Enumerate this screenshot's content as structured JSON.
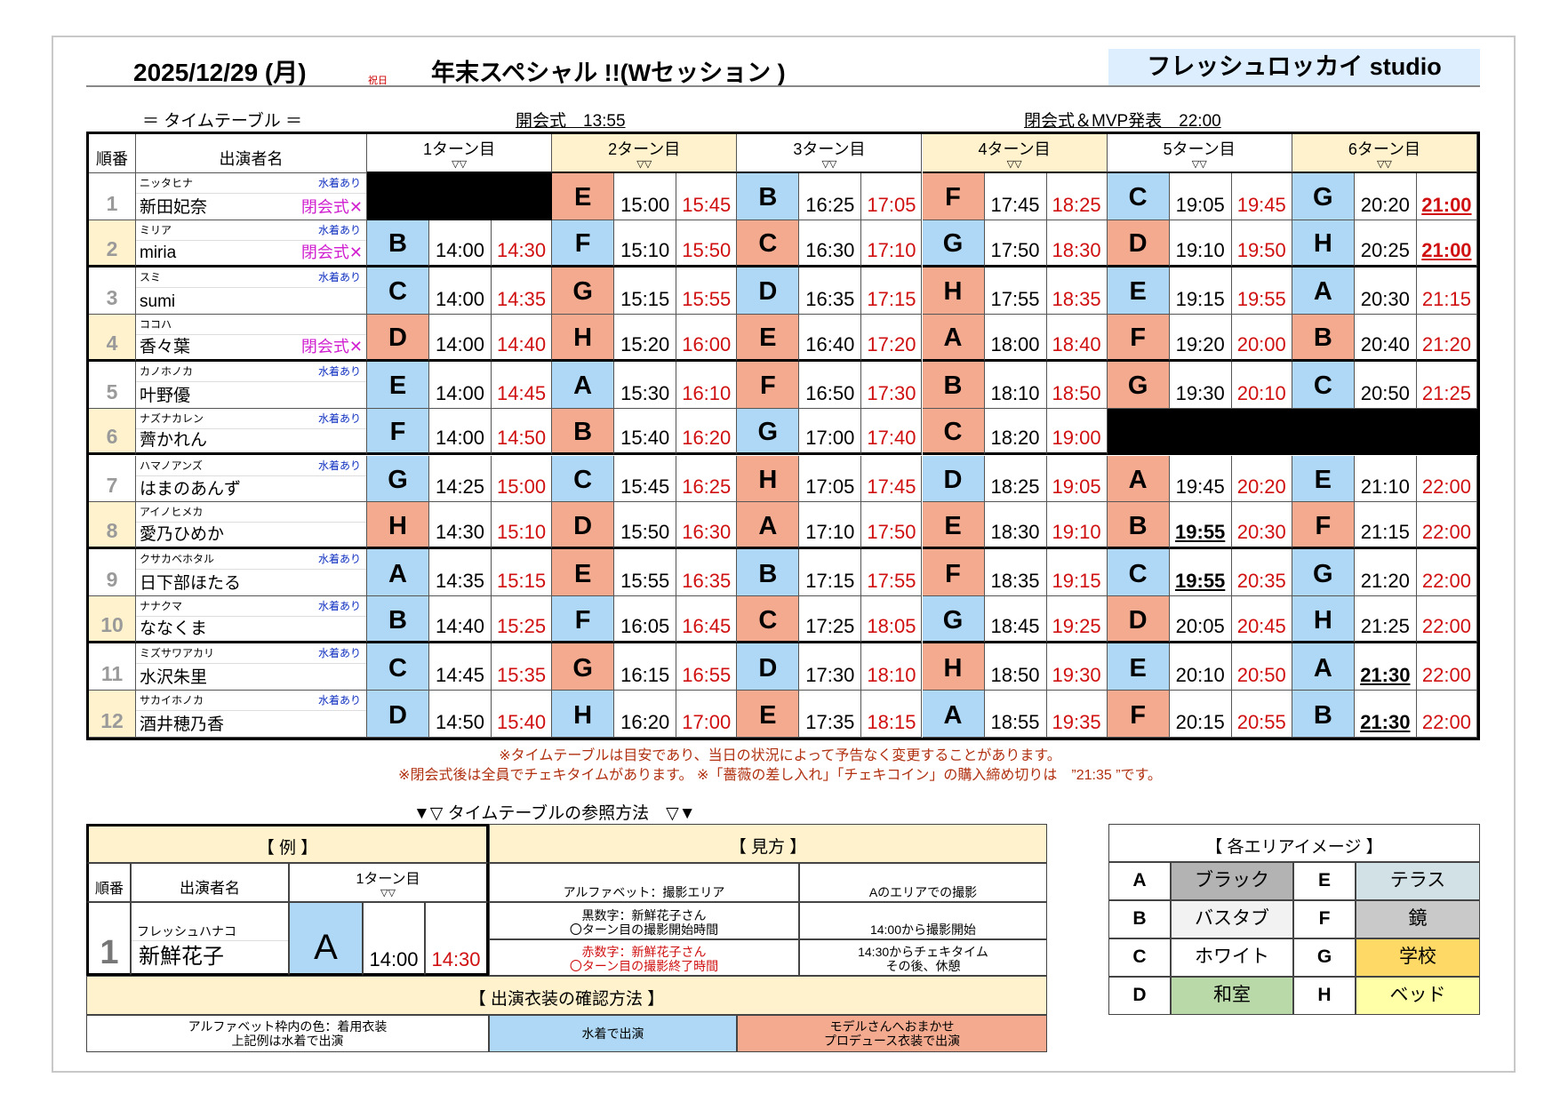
{
  "header": {
    "date": "2025/12/29 (月)",
    "holiday": "祝日",
    "title": "年末スペシャル !!(Wセッション )",
    "studio": "フレッシュロッカイ studio",
    "timetable_label": "＝ タイムテーブル ＝",
    "opening": "開会式　13:55",
    "closing": "閉会式＆MVP発表　22:00"
  },
  "colors": {
    "swimsuit": "#aed8f5",
    "producer": "#f4aa8f",
    "cream": "#fff2cc",
    "end_time": "#d01010",
    "closing_mark": "#d020d0"
  },
  "table": {
    "col_no": "順番",
    "col_name": "出演者名",
    "turns": [
      {
        "label": "1ターン目",
        "sub": "▽▽"
      },
      {
        "label": "2ターン目",
        "sub": "▽▽"
      },
      {
        "label": "3ターン目",
        "sub": "▽▽"
      },
      {
        "label": "4ターン目",
        "sub": "▽▽"
      },
      {
        "label": "5ターン目",
        "sub": "▽▽"
      },
      {
        "label": "6ターン目",
        "sub": "▽▽"
      }
    ],
    "rows": [
      {
        "no": "1",
        "kana": "ニッタヒナ",
        "name": "新田妃奈",
        "swimsuit": "水着あり",
        "closing": "閉会式✕",
        "slots": [
          null,
          {
            "area": "E",
            "color": "salmon",
            "start": "15:00",
            "end": "15:45"
          },
          {
            "area": "B",
            "color": "blue",
            "start": "16:25",
            "end": "17:05"
          },
          {
            "area": "F",
            "color": "salmon",
            "start": "17:45",
            "end": "18:25"
          },
          {
            "area": "C",
            "color": "blue",
            "start": "19:05",
            "end": "19:45"
          },
          {
            "area": "G",
            "color": "blue",
            "start": "20:20",
            "end": "21:00",
            "emphasize": "end"
          }
        ]
      },
      {
        "no": "2",
        "kana": "ミリア",
        "name": "miria",
        "swimsuit": "水着あり",
        "closing": "閉会式✕",
        "slots": [
          {
            "area": "B",
            "color": "blue",
            "start": "14:00",
            "end": "14:30"
          },
          {
            "area": "F",
            "color": "blue",
            "start": "15:10",
            "end": "15:50"
          },
          {
            "area": "C",
            "color": "salmon",
            "start": "16:30",
            "end": "17:10"
          },
          {
            "area": "G",
            "color": "blue",
            "start": "17:50",
            "end": "18:30"
          },
          {
            "area": "D",
            "color": "salmon",
            "start": "19:10",
            "end": "19:50"
          },
          {
            "area": "H",
            "color": "blue",
            "start": "20:25",
            "end": "21:00",
            "emphasize": "end"
          }
        ]
      },
      {
        "no": "3",
        "kana": "スミ",
        "name": "sumi",
        "swimsuit": "水着あり",
        "closing": "",
        "slots": [
          {
            "area": "C",
            "color": "blue",
            "start": "14:00",
            "end": "14:35"
          },
          {
            "area": "G",
            "color": "salmon",
            "start": "15:15",
            "end": "15:55"
          },
          {
            "area": "D",
            "color": "blue",
            "start": "16:35",
            "end": "17:15"
          },
          {
            "area": "H",
            "color": "salmon",
            "start": "17:55",
            "end": "18:35"
          },
          {
            "area": "E",
            "color": "blue",
            "start": "19:15",
            "end": "19:55"
          },
          {
            "area": "A",
            "color": "blue",
            "start": "20:30",
            "end": "21:15"
          }
        ]
      },
      {
        "no": "4",
        "kana": "ココハ",
        "name": "香々葉",
        "swimsuit": "",
        "closing": "閉会式✕",
        "slots": [
          {
            "area": "D",
            "color": "salmon",
            "start": "14:00",
            "end": "14:40"
          },
          {
            "area": "H",
            "color": "salmon",
            "start": "15:20",
            "end": "16:00"
          },
          {
            "area": "E",
            "color": "salmon",
            "start": "16:40",
            "end": "17:20"
          },
          {
            "area": "A",
            "color": "salmon",
            "start": "18:00",
            "end": "18:40"
          },
          {
            "area": "F",
            "color": "salmon",
            "start": "19:20",
            "end": "20:00"
          },
          {
            "area": "B",
            "color": "salmon",
            "start": "20:40",
            "end": "21:20"
          }
        ]
      },
      {
        "no": "5",
        "kana": "カノホノカ",
        "name": "叶野優",
        "swimsuit": "水着あり",
        "closing": "",
        "slots": [
          {
            "area": "E",
            "color": "blue",
            "start": "14:00",
            "end": "14:45"
          },
          {
            "area": "A",
            "color": "blue",
            "start": "15:30",
            "end": "16:10"
          },
          {
            "area": "F",
            "color": "salmon",
            "start": "16:50",
            "end": "17:30"
          },
          {
            "area": "B",
            "color": "salmon",
            "start": "18:10",
            "end": "18:50"
          },
          {
            "area": "G",
            "color": "salmon",
            "start": "19:30",
            "end": "20:10"
          },
          {
            "area": "C",
            "color": "blue",
            "start": "20:50",
            "end": "21:25"
          }
        ]
      },
      {
        "no": "6",
        "kana": "ナズナカレン",
        "name": "薺かれん",
        "swimsuit": "水着あり",
        "closing": "",
        "slots": [
          {
            "area": "F",
            "color": "blue",
            "start": "14:00",
            "end": "14:50"
          },
          {
            "area": "B",
            "color": "salmon",
            "start": "15:40",
            "end": "16:20"
          },
          {
            "area": "G",
            "color": "blue",
            "start": "17:00",
            "end": "17:40"
          },
          {
            "area": "C",
            "color": "salmon",
            "start": "18:20",
            "end": "19:00"
          },
          null,
          null
        ]
      },
      {
        "no": "7",
        "kana": "ハマノアンズ",
        "name": "はまのあんず",
        "swimsuit": "水着あり",
        "closing": "",
        "slots": [
          {
            "area": "G",
            "color": "blue",
            "start": "14:25",
            "end": "15:00"
          },
          {
            "area": "C",
            "color": "blue",
            "start": "15:45",
            "end": "16:25"
          },
          {
            "area": "H",
            "color": "salmon",
            "start": "17:05",
            "end": "17:45"
          },
          {
            "area": "D",
            "color": "blue",
            "start": "18:25",
            "end": "19:05"
          },
          {
            "area": "A",
            "color": "salmon",
            "start": "19:45",
            "end": "20:20"
          },
          {
            "area": "E",
            "color": "blue",
            "start": "21:10",
            "end": "22:00"
          }
        ]
      },
      {
        "no": "8",
        "kana": "アイノヒメカ",
        "name": "愛乃ひめか",
        "swimsuit": "",
        "closing": "",
        "slots": [
          {
            "area": "H",
            "color": "salmon",
            "start": "14:30",
            "end": "15:10"
          },
          {
            "area": "D",
            "color": "salmon",
            "start": "15:50",
            "end": "16:30"
          },
          {
            "area": "A",
            "color": "salmon",
            "start": "17:10",
            "end": "17:50"
          },
          {
            "area": "E",
            "color": "salmon",
            "start": "18:30",
            "end": "19:10"
          },
          {
            "area": "B",
            "color": "salmon",
            "start": "19:55",
            "end": "20:30",
            "emphasize": "start"
          },
          {
            "area": "F",
            "color": "salmon",
            "start": "21:15",
            "end": "22:00"
          }
        ]
      },
      {
        "no": "9",
        "kana": "クサカベホタル",
        "name": "日下部ほたる",
        "swimsuit": "水着あり",
        "closing": "",
        "slots": [
          {
            "area": "A",
            "color": "blue",
            "start": "14:35",
            "end": "15:15"
          },
          {
            "area": "E",
            "color": "salmon",
            "start": "15:55",
            "end": "16:35"
          },
          {
            "area": "B",
            "color": "blue",
            "start": "17:15",
            "end": "17:55"
          },
          {
            "area": "F",
            "color": "salmon",
            "start": "18:35",
            "end": "19:15"
          },
          {
            "area": "C",
            "color": "blue",
            "start": "19:55",
            "end": "20:35",
            "emphasize": "start"
          },
          {
            "area": "G",
            "color": "blue",
            "start": "21:20",
            "end": "22:00"
          }
        ]
      },
      {
        "no": "10",
        "kana": "ナナクマ",
        "name": "ななくま",
        "swimsuit": "水着あり",
        "closing": "",
        "slots": [
          {
            "area": "B",
            "color": "blue",
            "start": "14:40",
            "end": "15:25"
          },
          {
            "area": "F",
            "color": "blue",
            "start": "16:05",
            "end": "16:45"
          },
          {
            "area": "C",
            "color": "salmon",
            "start": "17:25",
            "end": "18:05"
          },
          {
            "area": "G",
            "color": "blue",
            "start": "18:45",
            "end": "19:25"
          },
          {
            "area": "D",
            "color": "salmon",
            "start": "20:05",
            "end": "20:45"
          },
          {
            "area": "H",
            "color": "blue",
            "start": "21:25",
            "end": "22:00"
          }
        ]
      },
      {
        "no": "11",
        "kana": "ミズサワアカリ",
        "name": "水沢朱里",
        "swimsuit": "水着あり",
        "closing": "",
        "slots": [
          {
            "area": "C",
            "color": "blue",
            "start": "14:45",
            "end": "15:35"
          },
          {
            "area": "G",
            "color": "salmon",
            "start": "16:15",
            "end": "16:55"
          },
          {
            "area": "D",
            "color": "blue",
            "start": "17:30",
            "end": "18:10"
          },
          {
            "area": "H",
            "color": "salmon",
            "start": "18:50",
            "end": "19:30"
          },
          {
            "area": "E",
            "color": "blue",
            "start": "20:10",
            "end": "20:50"
          },
          {
            "area": "A",
            "color": "blue",
            "start": "21:30",
            "end": "22:00",
            "emphasize": "start"
          }
        ]
      },
      {
        "no": "12",
        "kana": "サカイホノカ",
        "name": "酒井穂乃香",
        "swimsuit": "水着あり",
        "closing": "",
        "slots": [
          {
            "area": "D",
            "color": "blue",
            "start": "14:50",
            "end": "15:40"
          },
          {
            "area": "H",
            "color": "blue",
            "start": "16:20",
            "end": "17:00"
          },
          {
            "area": "E",
            "color": "salmon",
            "start": "17:35",
            "end": "18:15"
          },
          {
            "area": "A",
            "color": "blue",
            "start": "18:55",
            "end": "19:35"
          },
          {
            "area": "F",
            "color": "salmon",
            "start": "20:15",
            "end": "20:55"
          },
          {
            "area": "B",
            "color": "blue",
            "start": "21:30",
            "end": "22:00",
            "emphasize": "start"
          }
        ]
      }
    ]
  },
  "notes": [
    "※タイムテーブルは目安であり、当日の状況によって予告なく変更することがあります。",
    "※閉会式後は全員でチェキタイムがあります。 ※「薔薇の差し入れ」「チェキコイン」の購入締め切りは　”21:35 ”です。"
  ],
  "reference": {
    "title": "▼▽ タイムテーブルの参照方法　▽▼",
    "example": {
      "heading": "【 例 】",
      "col_no": "順番",
      "col_name": "出演者名",
      "turn": "1ターン目",
      "turn_sub": "▽▽",
      "no": "1",
      "kana": "フレッシュハナコ",
      "name": "新鮮花子",
      "area": "A",
      "start": "14:00",
      "end": "14:30"
    },
    "how_to": {
      "heading": "【 見方 】",
      "rows": [
        {
          "left": "アルファベット：撮影エリア",
          "right": "Aのエリアでの撮影"
        },
        {
          "left": "黒数字：新鮮花子さん\n〇ターン目の撮影開始時間",
          "right": "14:00から撮影開始"
        },
        {
          "left": "赤数字：新鮮花子さん\n〇ターン目の撮影終了時間",
          "right": "14:30からチェキタイム\nその後、休憩"
        }
      ]
    },
    "costume": {
      "heading": "【 出演衣装の確認方法 】",
      "explain": "アルファベット枠内の色：着用衣装\n上記例は水着で出演",
      "swimsuit": "水着で出演",
      "producer": "モデルさんへおまかせ\nプロデュース衣装で出演"
    }
  },
  "areas": {
    "heading": "【 各エリアイメージ 】",
    "items": [
      {
        "code": "A",
        "name": "ブラック",
        "color": "#b3b3b3"
      },
      {
        "code": "B",
        "name": "バスタブ",
        "color": "#f2f2f2"
      },
      {
        "code": "C",
        "name": "ホワイト",
        "color": "#ffffff"
      },
      {
        "code": "D",
        "name": "和室",
        "color": "#b9d9a9"
      },
      {
        "code": "E",
        "name": "テラス",
        "color": "#d2e1e6"
      },
      {
        "code": "F",
        "name": "鏡",
        "color": "#c9c9c9"
      },
      {
        "code": "G",
        "name": "学校",
        "color": "#ffd966"
      },
      {
        "code": "H",
        "name": "ベッド",
        "color": "#ffffa8"
      }
    ]
  }
}
